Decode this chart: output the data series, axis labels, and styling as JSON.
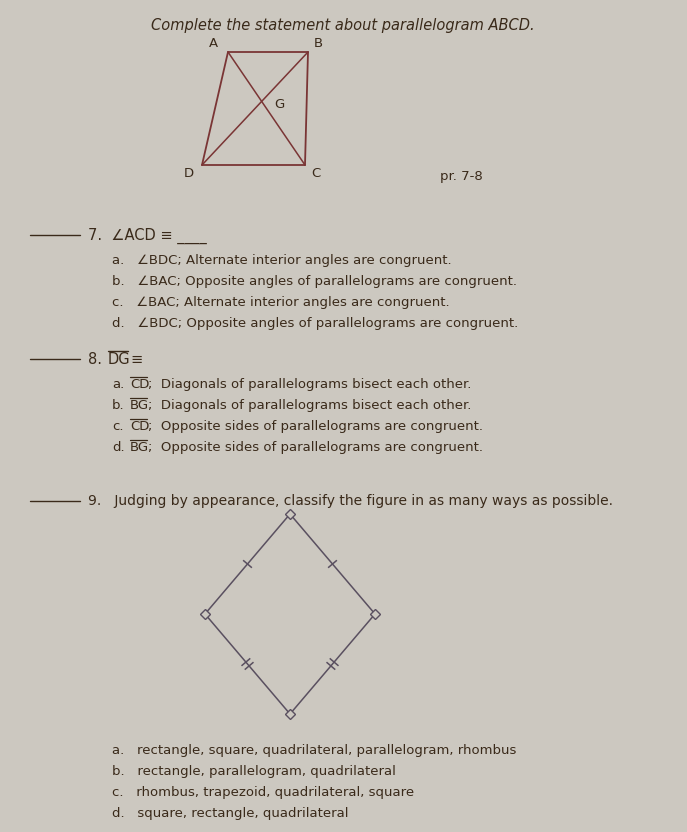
{
  "bg_color": "#ccc8c0",
  "title_italic": "Complete the statement about parallelogram ABCD.",
  "pr_label": "pr. 7-8",
  "text_color": "#3a2a1a",
  "shape_color": "#7a3535",
  "diamond_color": "#5a5060",
  "q7_stem": "∠ACD ≡ ____",
  "q7_a": "∠BDC; Alternate interior angles are congruent.",
  "q7_b": "∠BAC; Opposite angles of parallelograms are congruent.",
  "q7_c": "∠BAC; Alternate interior angles are congruent.",
  "q7_d": "∠BDC; Opposite angles of parallelograms are congruent.",
  "q8_stem_seg": "DG",
  "q8_a_seg": "CD",
  "q8_b_seg": "BG",
  "q8_c_seg": "CD",
  "q8_d_seg": "BG",
  "q8_a_rest": "; Diagonals of parallelograms bisect each other.",
  "q8_b_rest": "; Diagonals of parallelograms bisect each other.",
  "q8_c_rest": "; Opposite sides of parallelograms are congruent.",
  "q8_d_rest": "; Opposite sides of parallelograms are congruent.",
  "q9_stem": "Judging by appearance, classify the figure in as many ways as possible.",
  "q9_a": "rectangle, square, quadrilateral, parallelogram, rhombus",
  "q9_b": "rectangle, parallelogram, quadrilateral",
  "q9_c": "rhombus, trapezoid, quadrilateral, square",
  "q9_d": "square, rectangle, quadrilateral"
}
